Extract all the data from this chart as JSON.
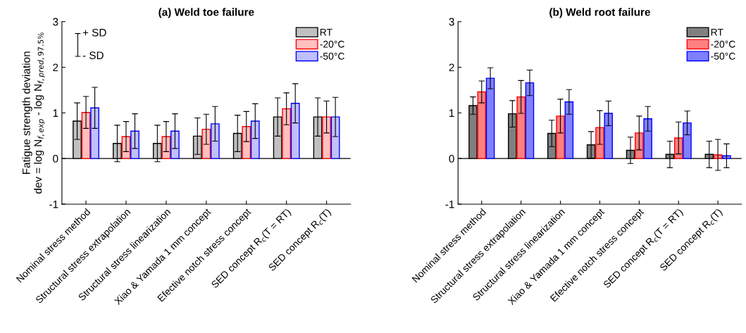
{
  "chart_data": [
    {
      "type": "bar",
      "title": "(a) Weld toe failure",
      "ylabel": "Fatigue strength deviation\ndev = log N$_{f,exp}$ - log N$_{f,pred,97.5%}$",
      "categories": [
        "Nominal stress method",
        "Structural stress extrapolation",
        "Structural stress linearization",
        "Xiao & Yamada 1 mm concept",
        "Efective notch stress concept",
        "SED concept R$_{c}$(T = RT)",
        "SED concept R$_{c}$(T)"
      ],
      "series": [
        {
          "name": "RT",
          "color": "#c0c0c0",
          "values": [
            0.82,
            0.33,
            0.33,
            0.49,
            0.55,
            0.91,
            0.91
          ],
          "errors": [
            0.4,
            0.4,
            0.4,
            0.4,
            0.4,
            0.42,
            0.42
          ]
        },
        {
          "name": "-20°C",
          "color": "#ffc0c0",
          "values": [
            1.01,
            0.48,
            0.48,
            0.64,
            0.7,
            1.09,
            0.91
          ],
          "errors": [
            0.35,
            0.33,
            0.33,
            0.33,
            0.33,
            0.35,
            0.35
          ]
        },
        {
          "name": "-50°C",
          "color": "#c0c0ff",
          "values": [
            1.11,
            0.6,
            0.6,
            0.76,
            0.82,
            1.21,
            0.91
          ],
          "errors": [
            0.45,
            0.38,
            0.38,
            0.38,
            0.38,
            0.43,
            0.43
          ]
        }
      ],
      "ylim": [
        -1,
        3
      ],
      "yticks": [
        -1,
        0,
        1,
        2,
        3
      ],
      "grid": false,
      "legend": "top right",
      "ref_lines": [
        {
          "axis": "y",
          "value": 0,
          "color": "#000000"
        }
      ],
      "annotations": [
        "+ SD",
        "- SD"
      ]
    },
    {
      "type": "bar",
      "title": "(b) Weld root failure",
      "categories": [
        "Nominal stress method",
        "Structural stress extrapolation",
        "Structural stress linearization",
        "Xiao & Yamada 1 mm concept",
        "Efective notch stress concept",
        "SED concept R$_{c}$(T = RT)",
        "SED concept R$_{c}$(T)"
      ],
      "series": [
        {
          "name": "RT",
          "color": "#808080",
          "values": [
            1.16,
            0.98,
            0.55,
            0.3,
            0.18,
            0.09,
            0.09
          ],
          "errors": [
            0.19,
            0.29,
            0.29,
            0.29,
            0.29,
            0.29,
            0.29
          ]
        },
        {
          "name": "-20°C",
          "color": "#ff8080",
          "values": [
            1.46,
            1.35,
            0.93,
            0.68,
            0.56,
            0.45,
            0.08
          ],
          "errors": [
            0.24,
            0.36,
            0.37,
            0.37,
            0.37,
            0.35,
            0.34
          ]
        },
        {
          "name": "-50°C",
          "color": "#8080ff",
          "values": [
            1.76,
            1.66,
            1.24,
            0.99,
            0.87,
            0.78,
            0.06
          ],
          "errors": [
            0.23,
            0.28,
            0.27,
            0.27,
            0.27,
            0.26,
            0.26
          ]
        }
      ],
      "ylim": [
        -1,
        3
      ],
      "yticks": [
        -1,
        0,
        1,
        2,
        3
      ],
      "grid": false,
      "legend": "top right",
      "ref_lines": [
        {
          "axis": "y",
          "value": 0,
          "color": "#000000"
        }
      ]
    }
  ]
}
